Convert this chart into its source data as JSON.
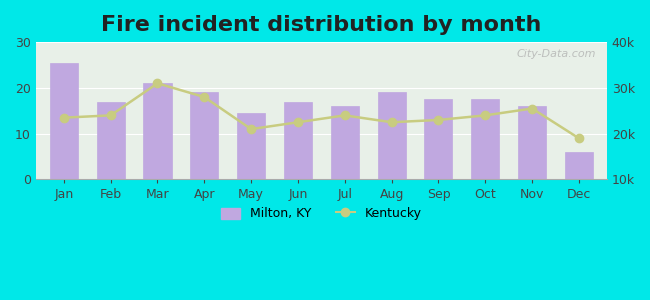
{
  "title": "Fire incident distribution by month",
  "months": [
    "Jan",
    "Feb",
    "Mar",
    "Apr",
    "May",
    "Jun",
    "Jul",
    "Aug",
    "Sep",
    "Oct",
    "Nov",
    "Dec"
  ],
  "bar_values": [
    25.5,
    17,
    21,
    19,
    14.5,
    17,
    16,
    19,
    17.5,
    17.5,
    16,
    6
  ],
  "line_values_left": [
    13.5,
    14,
    21,
    18,
    11,
    12.5,
    14,
    12.5,
    13,
    14,
    15.5,
    9
  ],
  "bar_color": "#c0a8e0",
  "bar_color_edge": "#b090d0",
  "line_color": "#c8cc80",
  "line_marker": "o",
  "line_marker_color": "#c8cc80",
  "background_color": "#00e8e8",
  "plot_bg_top": "#e8f0e8",
  "plot_bg_bottom": "#d8f0d8",
  "ylim_left": [
    0,
    30
  ],
  "ylim_right": [
    10000,
    40000
  ],
  "yticks_left": [
    0,
    10,
    20,
    30
  ],
  "yticks_right": [
    10000,
    20000,
    30000,
    40000
  ],
  "ytick_labels_right": [
    "10k",
    "20k",
    "30k",
    "40k"
  ],
  "legend_label_bar": "Milton, KY",
  "legend_label_line": "Kentucky",
  "watermark": "City-Data.com",
  "title_fontsize": 16,
  "tick_fontsize": 9,
  "legend_fontsize": 9
}
